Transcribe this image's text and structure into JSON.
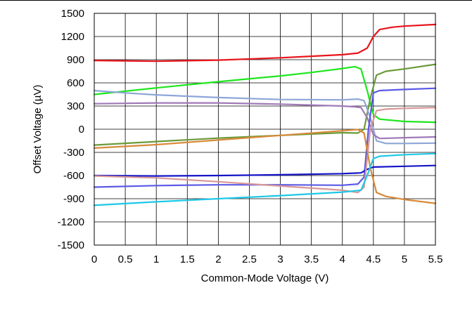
{
  "chart_data": {
    "type": "line",
    "title": "",
    "xlabel": "Common-Mode Voltage (V)",
    "ylabel": "Offset Voltage (µV)",
    "xlim": [
      0,
      5.5
    ],
    "ylim": [
      -1500,
      1500
    ],
    "xticks": [
      "0",
      "0.5",
      "1",
      "1.5",
      "2",
      "2.5",
      "3",
      "3.5",
      "4",
      "4.5",
      "5",
      "5.5"
    ],
    "yticks": [
      "1500",
      "1200",
      "900",
      "600",
      "300",
      "0",
      "-300",
      "-600",
      "-900",
      "-1200",
      "-1500"
    ],
    "grid": true,
    "legend": "none",
    "series": [
      {
        "color": "#e8141b",
        "points": [
          [
            0,
            890
          ],
          [
            1,
            880
          ],
          [
            2,
            895
          ],
          [
            3,
            925
          ],
          [
            3.5,
            945
          ],
          [
            4,
            965
          ],
          [
            4.25,
            985
          ],
          [
            4.4,
            1050
          ],
          [
            4.5,
            1200
          ],
          [
            4.6,
            1290
          ],
          [
            4.8,
            1320
          ],
          [
            5,
            1335
          ],
          [
            5.5,
            1355
          ]
        ]
      },
      {
        "color": "#1ee61e",
        "points": [
          [
            0,
            450
          ],
          [
            1,
            535
          ],
          [
            2,
            615
          ],
          [
            3,
            690
          ],
          [
            3.5,
            735
          ],
          [
            4,
            785
          ],
          [
            4.2,
            810
          ],
          [
            4.3,
            780
          ],
          [
            4.4,
            500
          ],
          [
            4.5,
            190
          ],
          [
            4.6,
            130
          ],
          [
            5,
            100
          ],
          [
            5.5,
            90
          ]
        ]
      },
      {
        "color": "#6a9a3a",
        "points": [
          [
            0,
            -205
          ],
          [
            1,
            -160
          ],
          [
            2,
            -115
          ],
          [
            3,
            -80
          ],
          [
            4,
            -45
          ],
          [
            4.25,
            -50
          ],
          [
            4.35,
            0
          ],
          [
            4.45,
            400
          ],
          [
            4.55,
            700
          ],
          [
            4.7,
            750
          ],
          [
            5,
            780
          ],
          [
            5.5,
            840
          ]
        ]
      },
      {
        "color": "#8ea6d8",
        "points": [
          [
            0,
            500
          ],
          [
            0.5,
            470
          ],
          [
            1,
            445
          ],
          [
            2,
            410
          ],
          [
            3,
            385
          ],
          [
            4,
            380
          ],
          [
            4.25,
            390
          ],
          [
            4.35,
            370
          ],
          [
            4.45,
            150
          ],
          [
            4.55,
            -150
          ],
          [
            4.7,
            -185
          ],
          [
            5,
            -185
          ],
          [
            5.5,
            -180
          ]
        ]
      },
      {
        "color": "#a07ab8",
        "points": [
          [
            0,
            330
          ],
          [
            1,
            340
          ],
          [
            2,
            340
          ],
          [
            3,
            325
          ],
          [
            4,
            300
          ],
          [
            4.2,
            290
          ],
          [
            4.3,
            280
          ],
          [
            4.4,
            150
          ],
          [
            4.5,
            -70
          ],
          [
            4.6,
            -120
          ],
          [
            5,
            -110
          ],
          [
            5.5,
            -100
          ]
        ]
      },
      {
        "color": "#5a5ae6",
        "points": [
          [
            0,
            -750
          ],
          [
            1,
            -730
          ],
          [
            2,
            -720
          ],
          [
            3,
            -720
          ],
          [
            4,
            -725
          ],
          [
            4.25,
            -710
          ],
          [
            4.35,
            -620
          ],
          [
            4.42,
            0
          ],
          [
            4.5,
            470
          ],
          [
            4.6,
            500
          ],
          [
            5,
            515
          ],
          [
            5.5,
            530
          ]
        ]
      },
      {
        "color": "#1414c8",
        "points": [
          [
            0,
            -600
          ],
          [
            1,
            -605
          ],
          [
            2,
            -600
          ],
          [
            3,
            -590
          ],
          [
            4,
            -575
          ],
          [
            4.3,
            -565
          ],
          [
            4.4,
            -520
          ],
          [
            4.5,
            -490
          ],
          [
            5,
            -480
          ],
          [
            5.5,
            -470
          ]
        ]
      },
      {
        "color": "#d89898",
        "points": [
          [
            0,
            -605
          ],
          [
            1,
            -630
          ],
          [
            2,
            -680
          ],
          [
            3,
            -735
          ],
          [
            4,
            -790
          ],
          [
            4.25,
            -820
          ],
          [
            4.35,
            -750
          ],
          [
            4.45,
            0
          ],
          [
            4.55,
            240
          ],
          [
            4.7,
            260
          ],
          [
            5,
            270
          ],
          [
            5.5,
            280
          ]
        ]
      },
      {
        "color": "#d88a3a",
        "points": [
          [
            0,
            -245
          ],
          [
            1,
            -200
          ],
          [
            2,
            -140
          ],
          [
            3,
            -80
          ],
          [
            4,
            -20
          ],
          [
            4.25,
            -5
          ],
          [
            4.35,
            -50
          ],
          [
            4.45,
            -500
          ],
          [
            4.55,
            -820
          ],
          [
            4.7,
            -870
          ],
          [
            5,
            -910
          ],
          [
            5.5,
            -960
          ]
        ]
      },
      {
        "color": "#1ec8e6",
        "points": [
          [
            0,
            -985
          ],
          [
            1,
            -940
          ],
          [
            2,
            -900
          ],
          [
            3,
            -860
          ],
          [
            4,
            -815
          ],
          [
            4.3,
            -790
          ],
          [
            4.4,
            -600
          ],
          [
            4.5,
            -380
          ],
          [
            4.6,
            -350
          ],
          [
            5,
            -330
          ],
          [
            5.5,
            -315
          ]
        ]
      }
    ]
  }
}
